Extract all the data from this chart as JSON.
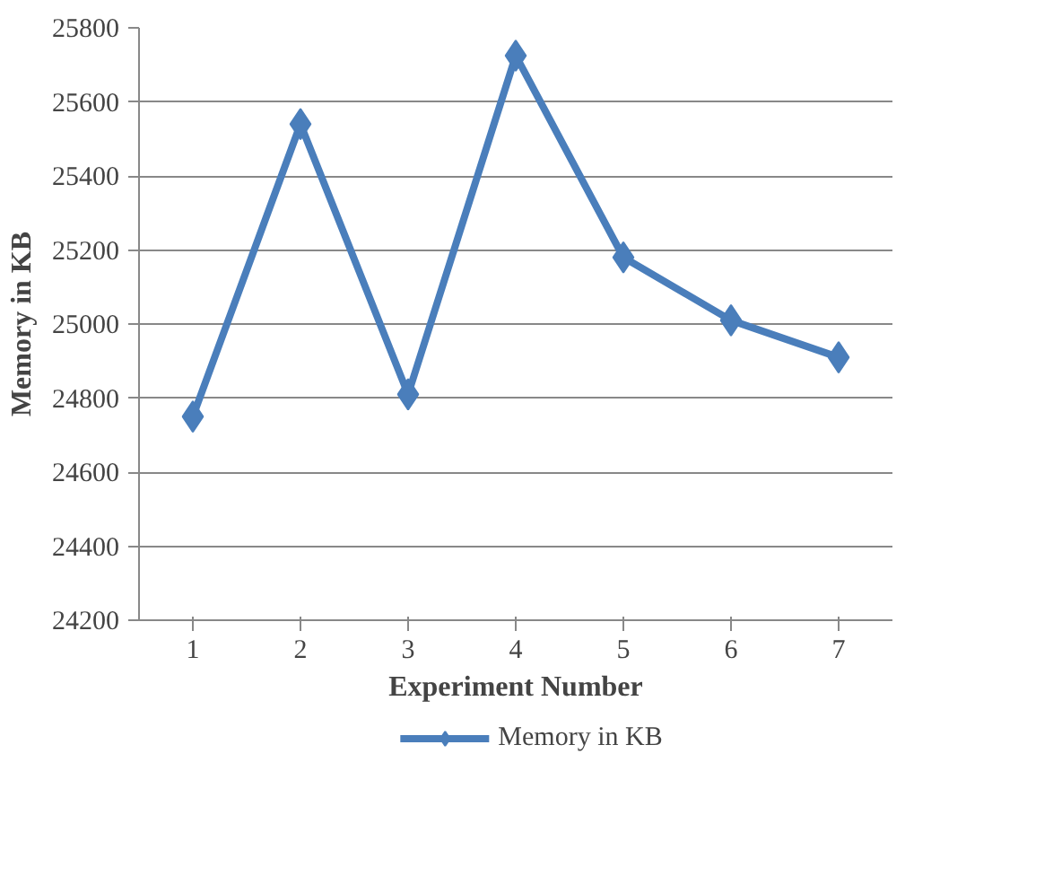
{
  "chart_data": {
    "type": "line",
    "xlabel": "Experiment Number",
    "ylabel": "Memory in KB",
    "categories": [
      "1",
      "2",
      "3",
      "4",
      "5",
      "6",
      "7"
    ],
    "series": [
      {
        "name": "Memory in KB",
        "color": "#4a7ebb",
        "values": [
          24750,
          25540,
          24810,
          25725,
          25180,
          25010,
          24910
        ]
      }
    ],
    "ylim": [
      24200,
      25800
    ],
    "yticks": [
      24200,
      24400,
      24600,
      24800,
      25000,
      25200,
      25400,
      25600,
      25800
    ],
    "grid": "y",
    "legend": "bottom",
    "marker": "diamond",
    "line_style": "solid"
  }
}
